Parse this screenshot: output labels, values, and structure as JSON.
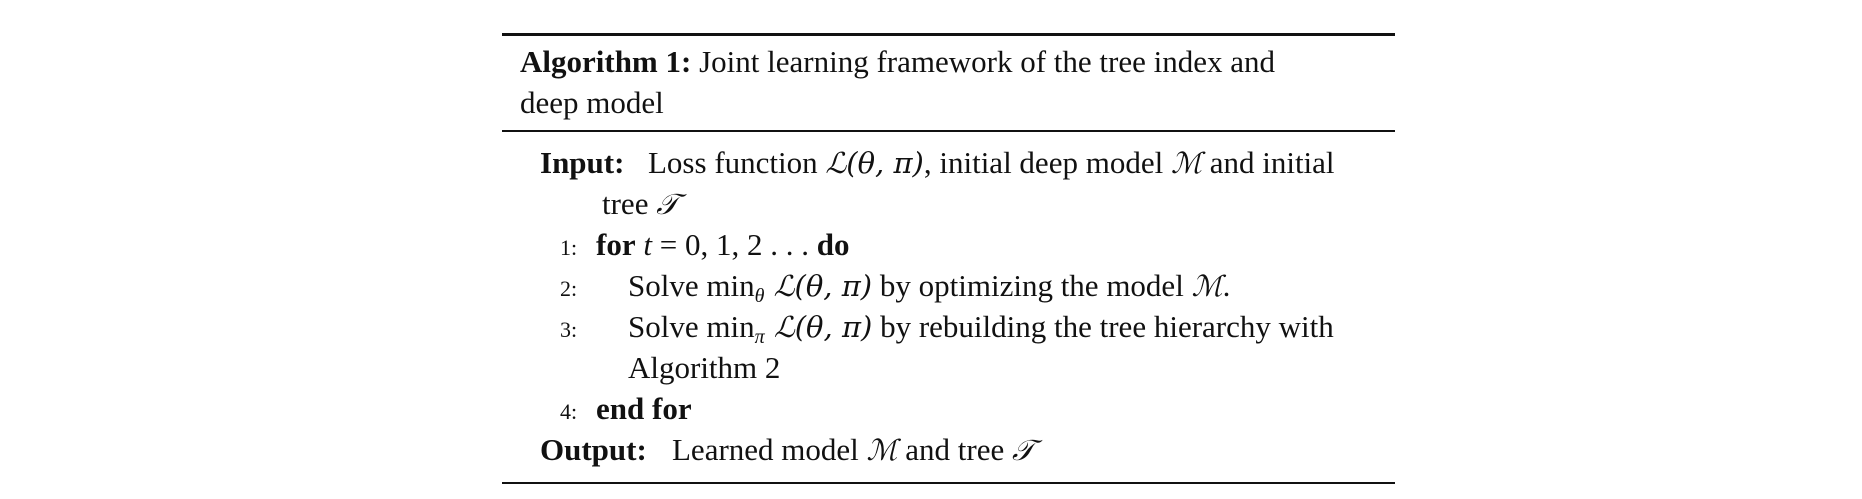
{
  "algorithm": {
    "label": "Algorithm 1:",
    "title_line1": "Joint learning framework of the tree index and",
    "title_line2": "deep model"
  },
  "input": {
    "label": "Input:",
    "line1_a": "Loss function ",
    "loss_fn": "ℒ(θ, π)",
    "line1_b": ", initial deep model ",
    "model_sym": "ℳ",
    "line1_c": " and initial",
    "line2_a": "tree ",
    "tree_sym": "𝒯"
  },
  "steps": [
    {
      "num": "1:",
      "kw_for": "for",
      "var_t": "t",
      "range": " = 0, 1, 2 . . . ",
      "kw_do": "do"
    },
    {
      "num": "2:",
      "text_a": "Solve min",
      "sub": "θ",
      "loss": " ℒ(θ, π)",
      "text_b": " by optimizing the model ",
      "model_sym": "ℳ",
      "text_c": "."
    },
    {
      "num": "3:",
      "text_a": "Solve min",
      "sub": "π",
      "loss": " ℒ(θ, π)",
      "text_b": " by rebuilding the tree hierarchy with",
      "text_cont": "Algorithm 2"
    },
    {
      "num": "4:",
      "kw_end": "end for"
    }
  ],
  "output": {
    "label": "Output:",
    "text_a": "Learned model ",
    "model_sym": "ℳ",
    "text_b": " and tree ",
    "tree_sym": "𝒯"
  }
}
